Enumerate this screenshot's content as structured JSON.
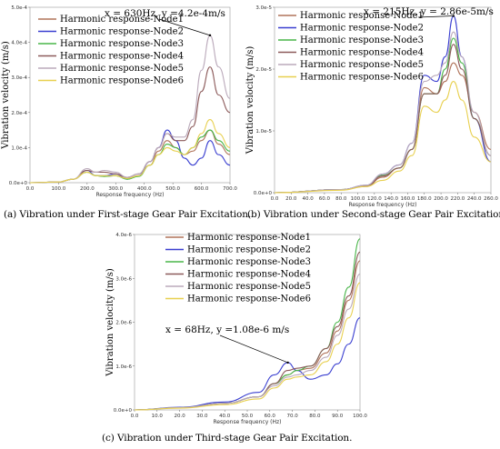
{
  "colors": {
    "Node1": "#b0735a",
    "Node2": "#3a3fd0",
    "Node3": "#48b548",
    "Node4": "#8c5a5a",
    "Node5": "#bbaabb",
    "Node6": "#e8d050"
  },
  "chart_data": [
    {
      "type": "line",
      "caption": "(a) Vibration under First-stage Gear Pair Excitation.",
      "xlabel": "Response frequency (Hz)",
      "ylabel": "Vibration velocity (m/s)",
      "xlim": [
        0,
        700
      ],
      "ylim": [
        0,
        0.0005
      ],
      "xticks": [
        0,
        100,
        200,
        300,
        400,
        500,
        600,
        700
      ],
      "xtick_labels": [
        "0.0",
        "100.0",
        "200.0",
        "300.0",
        "400.0",
        "500.0",
        "600.0",
        "700.0"
      ],
      "yticks": [
        0,
        0.0001,
        0.0002,
        0.0003,
        0.0004,
        0.0005
      ],
      "ytick_labels": [
        "0.0e+0",
        "1.0e-4",
        "2.0e-4",
        "3.0e-4",
        "4.0e-4",
        "5.0e-4"
      ],
      "annotation": {
        "text": "x = 630Hz, y =4.2e-4m/s",
        "x": 630,
        "y": 0.00042
      },
      "series": [
        {
          "name": "Harmonic response-Node1",
          "x": [
            0,
            100,
            150,
            200,
            230,
            260,
            300,
            340,
            380,
            420,
            450,
            480,
            510,
            540,
            570,
            600,
            630,
            660,
            700
          ],
          "values": [
            0,
            2e-06,
            1e-05,
            3e-05,
            2e-05,
            1.8e-05,
            2e-05,
            1.2e-05,
            2e-05,
            5e-05,
            9e-05,
            0.00012,
            0.0001,
            8e-05,
            9e-05,
            0.00012,
            0.00015,
            0.00011,
            8e-05
          ]
        },
        {
          "name": "Harmonic response-Node2",
          "x": [
            0,
            100,
            150,
            200,
            230,
            260,
            300,
            340,
            380,
            420,
            450,
            480,
            510,
            540,
            570,
            600,
            630,
            660,
            700
          ],
          "values": [
            0,
            2e-06,
            1e-05,
            3.5e-05,
            2e-05,
            2e-05,
            2.5e-05,
            1e-05,
            2e-05,
            6e-05,
            0.0001,
            0.00015,
            0.00012,
            7e-05,
            5e-05,
            7e-05,
            0.00012,
            8e-05,
            5e-05
          ]
        },
        {
          "name": "Harmonic response-Node3",
          "x": [
            0,
            100,
            150,
            200,
            230,
            260,
            300,
            340,
            380,
            420,
            450,
            480,
            510,
            540,
            570,
            600,
            630,
            660,
            700
          ],
          "values": [
            0,
            2e-06,
            1e-05,
            3e-05,
            2e-05,
            1.8e-05,
            2e-05,
            1e-05,
            1.8e-05,
            5e-05,
            8e-05,
            0.00011,
            0.0001,
            8e-05,
            0.0001,
            0.00013,
            0.00015,
            0.00012,
            9e-05
          ]
        },
        {
          "name": "Harmonic response-Node4",
          "x": [
            0,
            100,
            150,
            200,
            230,
            260,
            300,
            340,
            380,
            420,
            450,
            480,
            510,
            540,
            570,
            600,
            630,
            660,
            700
          ],
          "values": [
            0,
            2e-06,
            1e-05,
            3.5e-05,
            3e-05,
            3e-05,
            2.5e-05,
            1.5e-05,
            2.5e-05,
            6e-05,
            0.0001,
            0.00014,
            0.00012,
            0.00012,
            0.00016,
            0.00026,
            0.00033,
            0.00025,
            0.0002
          ]
        },
        {
          "name": "Harmonic response-Node5",
          "x": [
            0,
            100,
            150,
            200,
            230,
            260,
            300,
            340,
            380,
            420,
            450,
            480,
            510,
            540,
            570,
            600,
            630,
            660,
            700
          ],
          "values": [
            0,
            2e-06,
            1e-05,
            4e-05,
            3e-05,
            3.5e-05,
            3e-05,
            1.5e-05,
            2.5e-05,
            6e-05,
            0.0001,
            0.00014,
            0.00013,
            0.00013,
            0.00018,
            0.00032,
            0.00042,
            0.00033,
            0.00024
          ]
        },
        {
          "name": "Harmonic response-Node6",
          "x": [
            0,
            100,
            150,
            200,
            230,
            260,
            300,
            340,
            380,
            420,
            450,
            480,
            510,
            540,
            570,
            600,
            630,
            660,
            700
          ],
          "values": [
            0,
            2e-06,
            1e-05,
            3e-05,
            2e-05,
            2e-05,
            2e-05,
            1.2e-05,
            2e-05,
            5e-05,
            8e-05,
            0.0001,
            9e-05,
            8e-05,
            0.0001,
            0.00014,
            0.00018,
            0.00014,
            0.0001
          ]
        }
      ]
    },
    {
      "type": "line",
      "caption": "(b) Vibration under Second-stage Gear Pair Excitation.",
      "xlabel": "Response frequency (Hz)",
      "ylabel": "Vibration velocity (m/s)",
      "xlim": [
        0,
        260
      ],
      "ylim": [
        0,
        3e-05
      ],
      "xticks": [
        0,
        20,
        40,
        60,
        80,
        100,
        120,
        140,
        160,
        180,
        200,
        220,
        240,
        260
      ],
      "xtick_labels": [
        "0.0",
        "20.0",
        "40.0",
        "60.0",
        "80.0",
        "100.0",
        "120.0",
        "140.0",
        "160.0",
        "180.0",
        "200.0",
        "220.0",
        "240.0",
        "260.0"
      ],
      "yticks": [
        0,
        1e-05,
        2e-05,
        3e-05
      ],
      "ytick_labels": [
        "0.0e+0",
        "1.0e-5",
        "2.0e-5",
        "3.0e-5"
      ],
      "annotation": {
        "text": "x = 215Hz, y = 2.86e-5m/s",
        "x": 215,
        "y": 2.86e-05
      },
      "series": [
        {
          "name": "Harmonic response-Node1",
          "x": [
            0,
            80,
            110,
            130,
            150,
            165,
            180,
            195,
            205,
            215,
            225,
            240,
            260
          ],
          "values": [
            0,
            5e-07,
            1e-06,
            2.5e-06,
            4e-06,
            7e-06,
            1.7e-05,
            1.6e-05,
            1.8e-05,
            2.1e-05,
            1.9e-05,
            1.3e-05,
            7e-06
          ]
        },
        {
          "name": "Harmonic response-Node2",
          "x": [
            0,
            80,
            110,
            130,
            150,
            165,
            180,
            195,
            205,
            215,
            225,
            240,
            260
          ],
          "values": [
            0,
            5e-07,
            1.2e-06,
            3e-06,
            4.5e-06,
            8e-06,
            1.9e-05,
            1.8e-05,
            2.2e-05,
            2.86e-05,
            2.2e-05,
            1.2e-05,
            5e-06
          ]
        },
        {
          "name": "Harmonic response-Node3",
          "x": [
            0,
            80,
            110,
            130,
            150,
            165,
            180,
            195,
            205,
            215,
            225,
            240,
            260
          ],
          "values": [
            0,
            5e-07,
            1.1e-06,
            2.8e-06,
            4e-06,
            7e-06,
            1.6e-05,
            1.6e-05,
            2e-05,
            2.5e-05,
            2.1e-05,
            1.2e-05,
            6e-06
          ]
        },
        {
          "name": "Harmonic response-Node4",
          "x": [
            0,
            80,
            110,
            130,
            150,
            165,
            180,
            195,
            205,
            215,
            225,
            240,
            260
          ],
          "values": [
            0,
            5e-07,
            1.1e-06,
            2.7e-06,
            4e-06,
            7e-06,
            1.6e-05,
            1.6e-05,
            1.9e-05,
            2.4e-05,
            2e-05,
            1.2e-05,
            6e-06
          ]
        },
        {
          "name": "Harmonic response-Node5",
          "x": [
            0,
            80,
            110,
            130,
            150,
            165,
            180,
            195,
            205,
            215,
            225,
            240,
            260
          ],
          "values": [
            0,
            5e-07,
            1.2e-06,
            3e-06,
            4.5e-06,
            8e-06,
            1.8e-05,
            1.9e-05,
            2.1e-05,
            2.6e-05,
            2.2e-05,
            1.3e-05,
            6e-06
          ]
        },
        {
          "name": "Harmonic response-Node6",
          "x": [
            0,
            80,
            110,
            130,
            150,
            165,
            180,
            195,
            205,
            215,
            225,
            240,
            260
          ],
          "values": [
            0,
            4e-07,
            1e-06,
            2e-06,
            3.5e-06,
            6e-06,
            1.4e-05,
            1.3e-05,
            1.5e-05,
            1.8e-05,
            1.5e-05,
            9e-06,
            5e-06
          ]
        }
      ]
    },
    {
      "type": "line",
      "caption": "(c) Vibration under Third-stage Gear Pair Excitation.",
      "xlabel": "Response frequency (Hz)",
      "ylabel": "Vibration velocity (m/s)",
      "xlim": [
        0,
        100
      ],
      "ylim": [
        0,
        4e-06
      ],
      "xticks": [
        0,
        10,
        20,
        30,
        40,
        50,
        60,
        70,
        80,
        90,
        100
      ],
      "xtick_labels": [
        "0.0",
        "10.0",
        "20.0",
        "30.0",
        "40.0",
        "50.0",
        "60.0",
        "70.0",
        "80.0",
        "90.0",
        "100.0"
      ],
      "yticks": [
        0,
        1e-06,
        2e-06,
        3e-06,
        4e-06
      ],
      "ytick_labels": [
        "0.0e+0",
        "1.0e-6",
        "2.0e-6",
        "3.0e-6",
        "4.0e-6"
      ],
      "annotation": {
        "text": "x = 68Hz, y =1.08e-6 m/s",
        "x": 68,
        "y": 1.08e-06
      },
      "series": [
        {
          "name": "Harmonic response-Node1",
          "x": [
            0,
            20,
            40,
            55,
            62,
            68,
            72,
            78,
            85,
            90,
            95,
            100
          ],
          "values": [
            0,
            5e-08,
            1.5e-07,
            3e-07,
            6e-07,
            8e-07,
            9e-07,
            9.5e-07,
            1.3e-06,
            1.8e-06,
            2.5e-06,
            3.4e-06
          ]
        },
        {
          "name": "Harmonic response-Node2",
          "x": [
            0,
            20,
            40,
            55,
            62,
            68,
            72,
            78,
            85,
            90,
            95,
            100
          ],
          "values": [
            0,
            6e-08,
            1.8e-07,
            4e-07,
            8e-07,
            1.08e-06,
            9e-07,
            7e-07,
            8e-07,
            1.05e-06,
            1.5e-06,
            2.1e-06
          ]
        },
        {
          "name": "Harmonic response-Node3",
          "x": [
            0,
            20,
            40,
            55,
            62,
            68,
            72,
            78,
            85,
            90,
            95,
            100
          ],
          "values": [
            0,
            5e-08,
            1.5e-07,
            3e-07,
            6e-07,
            8e-07,
            9e-07,
            1e-06,
            1.4e-06,
            2e-06,
            2.8e-06,
            3.9e-06
          ]
        },
        {
          "name": "Harmonic response-Node4",
          "x": [
            0,
            20,
            40,
            55,
            62,
            68,
            72,
            78,
            85,
            90,
            95,
            100
          ],
          "values": [
            0,
            5e-08,
            1.5e-07,
            3e-07,
            6e-07,
            9e-07,
            9.5e-07,
            1e-06,
            1.4e-06,
            1.9e-06,
            2.6e-06,
            3.6e-06
          ]
        },
        {
          "name": "Harmonic response-Node5",
          "x": [
            0,
            20,
            40,
            55,
            62,
            68,
            72,
            78,
            85,
            90,
            95,
            100
          ],
          "values": [
            0,
            5e-08,
            1.5e-07,
            3e-07,
            5.5e-07,
            7.5e-07,
            8e-07,
            9e-07,
            1.2e-06,
            1.7e-06,
            2.3e-06,
            3.1e-06
          ]
        },
        {
          "name": "Harmonic response-Node6",
          "x": [
            0,
            20,
            40,
            55,
            62,
            68,
            72,
            78,
            85,
            90,
            95,
            100
          ],
          "values": [
            0,
            4e-08,
            1.2e-07,
            2.5e-07,
            5e-07,
            7e-07,
            7.5e-07,
            8e-07,
            1.1e-06,
            1.5e-06,
            2.1e-06,
            2.9e-06
          ]
        }
      ]
    }
  ]
}
